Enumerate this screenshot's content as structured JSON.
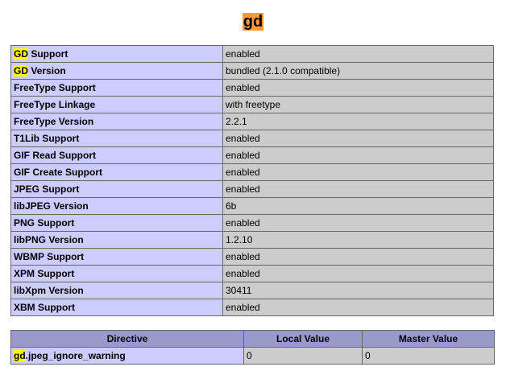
{
  "page": {
    "title": "gd"
  },
  "info_rows": [
    {
      "hl": "GD",
      "rest": " Support",
      "value": "enabled"
    },
    {
      "hl": "GD",
      "rest": " Version",
      "value": "bundled (2.1.0 compatible)"
    },
    {
      "hl": "",
      "rest": "FreeType Support",
      "value": "enabled"
    },
    {
      "hl": "",
      "rest": "FreeType Linkage",
      "value": "with freetype"
    },
    {
      "hl": "",
      "rest": "FreeType Version",
      "value": "2.2.1"
    },
    {
      "hl": "",
      "rest": "T1Lib Support",
      "value": "enabled"
    },
    {
      "hl": "",
      "rest": "GIF Read Support",
      "value": "enabled"
    },
    {
      "hl": "",
      "rest": "GIF Create Support",
      "value": "enabled"
    },
    {
      "hl": "",
      "rest": "JPEG Support",
      "value": "enabled"
    },
    {
      "hl": "",
      "rest": "libJPEG Version",
      "value": "6b"
    },
    {
      "hl": "",
      "rest": "PNG Support",
      "value": "enabled"
    },
    {
      "hl": "",
      "rest": "libPNG Version",
      "value": "1.2.10"
    },
    {
      "hl": "",
      "rest": "WBMP Support",
      "value": "enabled"
    },
    {
      "hl": "",
      "rest": "XPM Support",
      "value": "enabled"
    },
    {
      "hl": "",
      "rest": "libXpm Version",
      "value": "30411"
    },
    {
      "hl": "",
      "rest": "XBM Support",
      "value": "enabled"
    }
  ],
  "directives": {
    "headers": {
      "directive": "Directive",
      "local": "Local Value",
      "master": "Master Value"
    },
    "rows": [
      {
        "hl": "gd",
        "rest": ".jpeg_ignore_warning",
        "local": "0",
        "master": "0"
      }
    ]
  },
  "colors": {
    "title_bg": "#ff9933",
    "label_bg": "#ccccff",
    "value_bg": "#cccccc",
    "header_bg": "#9999cc",
    "highlight": "#ffff00"
  }
}
